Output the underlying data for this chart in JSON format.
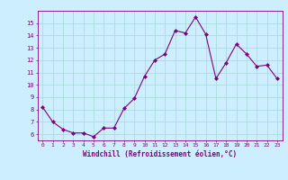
{
  "x": [
    0,
    1,
    2,
    3,
    4,
    5,
    6,
    7,
    8,
    9,
    10,
    11,
    12,
    13,
    14,
    15,
    16,
    17,
    18,
    19,
    20,
    21,
    22,
    23
  ],
  "y": [
    8.2,
    7.0,
    6.4,
    6.1,
    6.1,
    5.8,
    6.5,
    6.5,
    8.1,
    8.9,
    10.7,
    12.0,
    12.5,
    14.4,
    14.2,
    15.5,
    14.1,
    10.5,
    11.8,
    13.3,
    12.5,
    11.5,
    11.6,
    10.5
  ],
  "line_color": "#800080",
  "marker": "D",
  "marker_size": 2,
  "bg_color": "#cceeff",
  "grid_color": "#aadddd",
  "xlabel": "Windchill (Refroidissement éolien,°C)",
  "xlabel_color": "#800080",
  "tick_color": "#800080",
  "ylim": [
    5.5,
    16.0
  ],
  "xlim": [
    -0.5,
    23.5
  ],
  "yticks": [
    6,
    7,
    8,
    9,
    10,
    11,
    12,
    13,
    14,
    15
  ],
  "xticks": [
    0,
    1,
    2,
    3,
    4,
    5,
    6,
    7,
    8,
    9,
    10,
    11,
    12,
    13,
    14,
    15,
    16,
    17,
    18,
    19,
    20,
    21,
    22,
    23
  ],
  "figsize": [
    3.2,
    2.0
  ],
  "dpi": 100
}
